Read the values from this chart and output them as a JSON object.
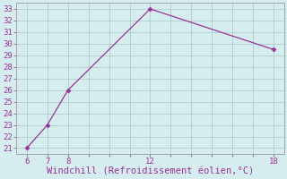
{
  "x": [
    6,
    7,
    8,
    12,
    18
  ],
  "y": [
    21,
    23,
    26,
    33,
    29.5
  ],
  "line_color": "#993399",
  "marker": "D",
  "marker_size": 2.5,
  "xlabel": "Windchill (Refroidissement éolien,°C)",
  "xlim": [
    5.5,
    18.5
  ],
  "ylim": [
    20.5,
    33.5
  ],
  "xticks_all": [
    6,
    7,
    8,
    9,
    10,
    11,
    12,
    13,
    14,
    15,
    16,
    17,
    18
  ],
  "xtick_labels_show": [
    6,
    7,
    8,
    12,
    18
  ],
  "yticks": [
    21,
    22,
    23,
    24,
    25,
    26,
    27,
    28,
    29,
    30,
    31,
    32,
    33
  ],
  "bg_color": "#d6edf0",
  "grid_color": "#b0cccc",
  "label_color": "#993399",
  "xlabel_fontsize": 7.5,
  "tick_fontsize": 6.5,
  "spine_color": "#999999"
}
